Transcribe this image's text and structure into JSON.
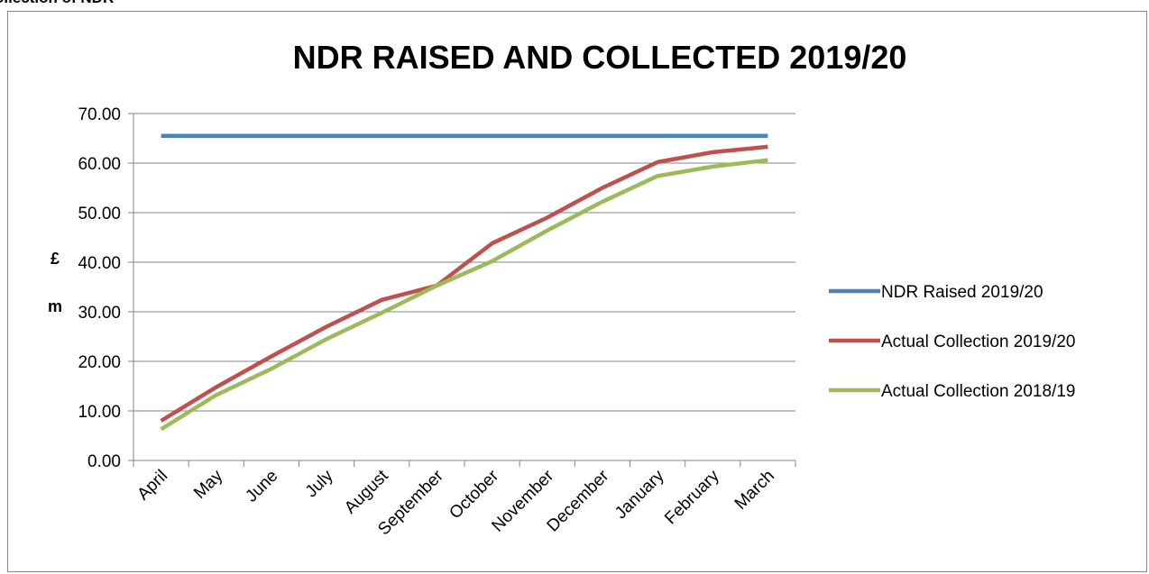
{
  "page": {
    "heading": "ollection of NDR"
  },
  "chart_data": {
    "type": "line",
    "title": "NDR RAISED AND COLLECTED 2019/20",
    "ylabel": "£ m",
    "ylabel_lines": [
      "£",
      "m"
    ],
    "xlabel": "",
    "ylim": [
      0,
      70
    ],
    "ytick_step": 10,
    "ytick_labels": [
      "0.00",
      "10.00",
      "20.00",
      "30.00",
      "40.00",
      "50.00",
      "60.00",
      "70.00"
    ],
    "grid": "horizontal",
    "legend_position": "right",
    "categories": [
      "April",
      "May",
      "June",
      "July",
      "August",
      "September",
      "October",
      "November",
      "December",
      "January",
      "February",
      "March"
    ],
    "series": [
      {
        "name": "NDR Raised 2019/20",
        "color": "#4F81BD",
        "values": [
          65.5,
          65.5,
          65.5,
          65.5,
          65.5,
          65.5,
          65.5,
          65.5,
          65.5,
          65.5,
          65.5,
          65.5
        ]
      },
      {
        "name": "Actual Collection 2019/20",
        "color": "#C0504D",
        "values": [
          8.0,
          14.8,
          21.0,
          27.0,
          32.4,
          35.3,
          43.8,
          49.0,
          55.0,
          60.2,
          62.2,
          63.3
        ]
      },
      {
        "name": "Actual Collection 2018/19",
        "color": "#9BBB59",
        "values": [
          6.3,
          13.2,
          18.5,
          24.5,
          29.8,
          35.3,
          40.2,
          46.4,
          52.2,
          57.4,
          59.3,
          60.6
        ]
      }
    ]
  }
}
